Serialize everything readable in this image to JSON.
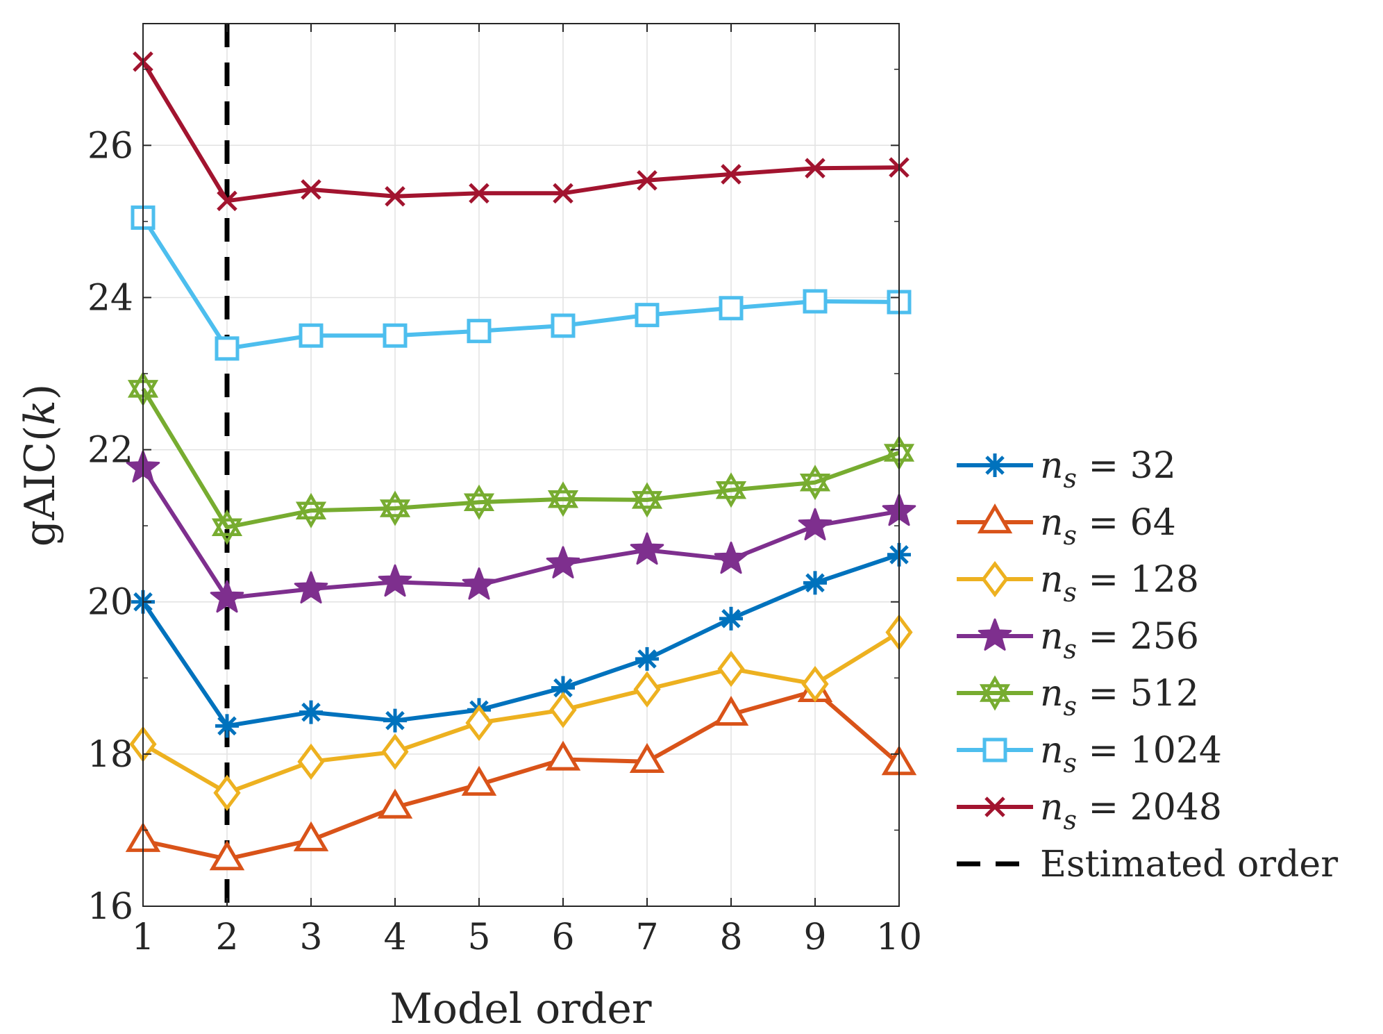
{
  "chart_data": {
    "type": "line",
    "title": "",
    "xlabel": "Model order",
    "ylabel": "gAIC(k)",
    "ylabel_parts": {
      "prefix": "gAIC(",
      "var": "k",
      "suffix": ")"
    },
    "xlim": [
      1,
      10
    ],
    "ylim": [
      16,
      27.6
    ],
    "grid": true,
    "legend_position": "outside-right",
    "x": [
      1,
      2,
      3,
      4,
      5,
      6,
      7,
      8,
      9,
      10
    ],
    "x_ticks": [
      "1",
      "2",
      "3",
      "4",
      "5",
      "6",
      "7",
      "8",
      "9",
      "10"
    ],
    "y_ticks": [
      "16",
      "18",
      "20",
      "22",
      "24",
      "26"
    ],
    "y_tick_values": [
      16,
      18,
      20,
      22,
      24,
      26
    ],
    "series": [
      {
        "name": "n_s = 32",
        "label_var": "n",
        "label_sub": "s",
        "label_rest": " = 32",
        "color": "#0072BD",
        "marker": "asterisk",
        "values": [
          20.0,
          18.37,
          18.55,
          18.44,
          18.58,
          18.87,
          19.25,
          19.78,
          20.25,
          20.62
        ]
      },
      {
        "name": "n_s = 64",
        "label_var": "n",
        "label_sub": "s",
        "label_rest": " = 64",
        "color": "#D95319",
        "marker": "triangle",
        "values": [
          16.86,
          16.62,
          16.87,
          17.3,
          17.6,
          17.93,
          17.9,
          18.52,
          18.83,
          17.87
        ]
      },
      {
        "name": "n_s = 128",
        "label_var": "n",
        "label_sub": "s",
        "label_rest": " = 128",
        "color": "#EDB120",
        "marker": "diamond",
        "values": [
          18.13,
          17.49,
          17.9,
          18.03,
          18.41,
          18.58,
          18.85,
          19.12,
          18.92,
          19.6
        ]
      },
      {
        "name": "n_s = 256",
        "label_var": "n",
        "label_sub": "s",
        "label_rest": " = 256",
        "color": "#7E2F8E",
        "marker": "pentagram",
        "values": [
          21.76,
          20.05,
          20.17,
          20.26,
          20.22,
          20.5,
          20.68,
          20.56,
          21.0,
          21.19
        ]
      },
      {
        "name": "n_s = 512",
        "label_var": "n",
        "label_sub": "s",
        "label_rest": " = 512",
        "color": "#77AC30",
        "marker": "hexagram",
        "values": [
          22.8,
          20.98,
          21.2,
          21.23,
          21.31,
          21.35,
          21.34,
          21.47,
          21.57,
          21.96
        ]
      },
      {
        "name": "n_s = 1024",
        "label_var": "n",
        "label_sub": "s",
        "label_rest": " = 1024",
        "color": "#4DBEEE",
        "marker": "square",
        "values": [
          25.05,
          23.33,
          23.5,
          23.5,
          23.56,
          23.63,
          23.77,
          23.86,
          23.95,
          23.94
        ]
      },
      {
        "name": "n_s = 2048",
        "label_var": "n",
        "label_sub": "s",
        "label_rest": " = 2048",
        "color": "#A2142F",
        "marker": "x",
        "values": [
          27.1,
          25.27,
          25.42,
          25.33,
          25.37,
          25.37,
          25.54,
          25.62,
          25.7,
          25.71
        ]
      }
    ],
    "reference_line": {
      "label": "Estimated order",
      "x": 2,
      "color": "#000000",
      "style": "dashed"
    }
  }
}
